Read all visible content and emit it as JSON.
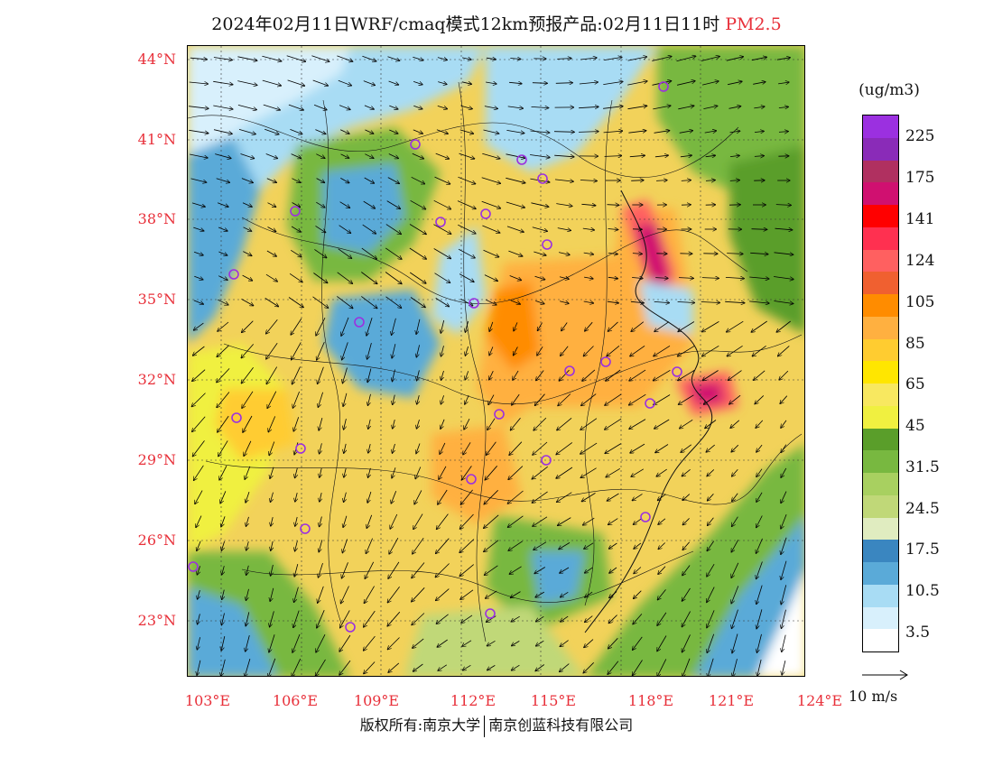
{
  "header": {
    "title": "2024年02月11日WRF/cmaq模式12km预报产品:02月11日11时",
    "pollutant": "PM2.5"
  },
  "map": {
    "lat_labels": [
      "44°N",
      "41°N",
      "38°N",
      "35°N",
      "32°N",
      "29°N",
      "26°N",
      "23°N"
    ],
    "lon_labels": [
      "103°E",
      "106°E",
      "109°E",
      "112°E",
      "115°E",
      "118°E",
      "121°E",
      "124°E"
    ]
  },
  "legend": {
    "unit": "(ug/m3)",
    "colors": [
      "#9b30e0",
      "#8a2bb8",
      "#b03060",
      "#d01070",
      "#ff0000",
      "#ff3050",
      "#ff6060",
      "#f06030",
      "#ff8c00",
      "#ffb040",
      "#ffcc30",
      "#ffe600",
      "#f8e860",
      "#f0f040",
      "#5a9e2a",
      "#78b840",
      "#a8d060",
      "#c0d878",
      "#e0ecc0",
      "#3a86c0",
      "#5aaad8",
      "#a8dcf4",
      "#d8f0fc",
      "#ffffff"
    ],
    "ticks": [
      "225",
      "175",
      "141",
      "124",
      "105",
      "85",
      "65",
      "45",
      "31.5",
      "24.5",
      "17.5",
      "10.5",
      "3.5"
    ]
  },
  "wind_reference": {
    "label": "10 m/s"
  },
  "footer": {
    "copyright_left": "版权所有:南京大学",
    "copyright_right": "南京创蓝科技有限公司"
  }
}
